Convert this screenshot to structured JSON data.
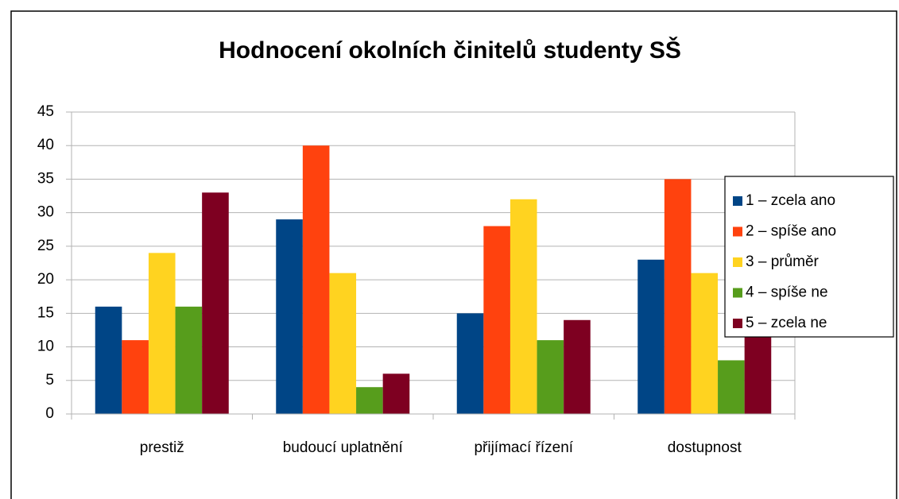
{
  "chart_data": {
    "type": "bar",
    "title": "Hodnocení okolních činitelů studenty SŠ",
    "categories": [
      "prestiž",
      "budoucí uplatnění",
      "přijímací řízení",
      "dostupnost"
    ],
    "series": [
      {
        "name": "1 – zcela ano",
        "color": "#004586",
        "values": [
          16,
          29,
          15,
          23
        ]
      },
      {
        "name": "2 – spíše ano",
        "color": "#ff420e",
        "values": [
          11,
          40,
          28,
          35
        ]
      },
      {
        "name": "3 – průměr",
        "color": "#ffd320",
        "values": [
          24,
          21,
          32,
          21
        ]
      },
      {
        "name": "4 – spíše ne",
        "color": "#579d1c",
        "values": [
          16,
          4,
          11,
          8
        ]
      },
      {
        "name": "5 – zcela ne",
        "color": "#7e0021",
        "values": [
          33,
          6,
          14,
          13
        ]
      }
    ],
    "ylim": [
      0,
      45
    ],
    "yticks": [
      0,
      5,
      10,
      15,
      20,
      25,
      30,
      35,
      40,
      45
    ],
    "grid": true,
    "legend": "right"
  }
}
